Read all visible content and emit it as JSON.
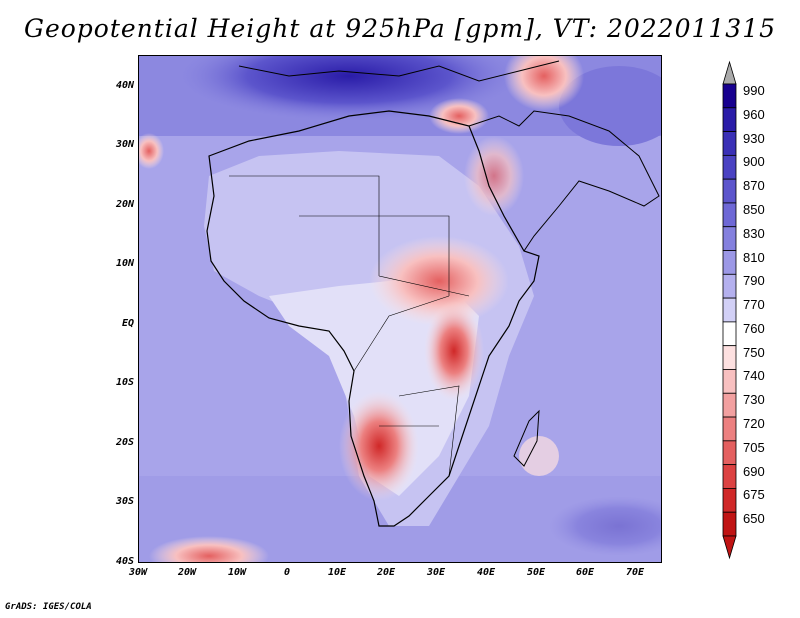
{
  "title": "Geopotential Height at 925hPa [gpm], VT: 2022011315",
  "credit": "GrADS: IGES/COLA",
  "map": {
    "region": "Africa and surrounding waters",
    "lat_labels": [
      "40N",
      "30N",
      "20N",
      "10N",
      "EQ",
      "10S",
      "20S",
      "30S",
      "40S"
    ],
    "lon_labels": [
      "30W",
      "20W",
      "10W",
      "0",
      "10E",
      "20E",
      "30E",
      "40E",
      "50E",
      "60E",
      "70E"
    ]
  },
  "colorbar": {
    "levels": [
      "990",
      "960",
      "930",
      "900",
      "870",
      "850",
      "830",
      "810",
      "790",
      "770",
      "760",
      "750",
      "740",
      "730",
      "720",
      "705",
      "690",
      "675",
      "650"
    ],
    "colors": [
      "#17008f",
      "#2a1ca8",
      "#3a30b6",
      "#4a42c2",
      "#5c55cc",
      "#6e68d6",
      "#8480de",
      "#9c98e6",
      "#b4b0ee",
      "#d2d0f6",
      "#ffffff",
      "#fde0e0",
      "#f8c0c0",
      "#f2a0a0",
      "#ec8080",
      "#e46060",
      "#dc4242",
      "#d02828",
      "#c01414"
    ],
    "over_color": "#aaaaaa"
  }
}
